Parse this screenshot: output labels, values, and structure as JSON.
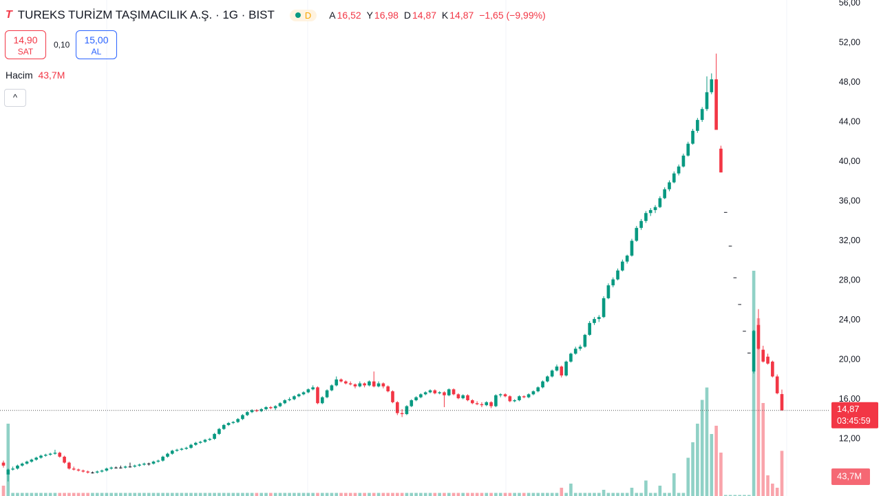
{
  "header": {
    "logo": "T",
    "title": "TUREKS TURİZM TAŞIMACILIK A.Ş. · 1G · BIST",
    "badge": "D",
    "o_key": "A",
    "o_val": "16,52",
    "h_key": "Y",
    "h_val": "16,98",
    "l_key": "D",
    "l_val": "14,87",
    "c_key": "K",
    "c_val": "14,87",
    "change": "−1,65 (−9,99%)",
    "sell_price": "14,90",
    "sell": "SAT",
    "spread": "0,10",
    "buy_price": "15,00",
    "buy": "AL",
    "volume_key": "Hacim",
    "volume_val": "43,7M",
    "collapse": "^"
  },
  "chart_data": {
    "type": "candlestick",
    "grid": true,
    "up_color": "#089981",
    "down_color": "#f23645",
    "flat_color": "#131722",
    "ylim": [
      6.23,
      56.31
    ],
    "yticks": [
      {
        "value": 12,
        "label": "12,00"
      },
      {
        "value": 16,
        "label": "16,00"
      },
      {
        "value": 20,
        "label": "20,00"
      },
      {
        "value": 24,
        "label": "24,00"
      },
      {
        "value": 28,
        "label": "28,00"
      },
      {
        "value": 32,
        "label": "32,00"
      },
      {
        "value": 36,
        "label": "36,00"
      },
      {
        "value": 40,
        "label": "40,00"
      },
      {
        "value": 44,
        "label": "44,00"
      },
      {
        "value": 48,
        "label": "48,00"
      },
      {
        "value": 52,
        "label": "52,00"
      },
      {
        "value": 56,
        "label": "56,00"
      }
    ],
    "last_price": 14.87,
    "last_price_label": "14,87",
    "countdown": "03:45:59",
    "vlim": [
      0,
      480
    ],
    "volume_label": "43,7M",
    "ohlc": [
      [
        9.6,
        9.8,
        9.1,
        9.3
      ],
      [
        8.4,
        9.0,
        7.7,
        8.9
      ],
      [
        8.9,
        9.2,
        8.8,
        9.0
      ],
      [
        9.0,
        9.4,
        8.9,
        9.3
      ],
      [
        9.3,
        9.6,
        9.2,
        9.5
      ],
      [
        9.5,
        9.8,
        9.4,
        9.7
      ],
      [
        9.7,
        10.0,
        9.6,
        9.9
      ],
      [
        9.9,
        10.2,
        9.8,
        10.1
      ],
      [
        10.1,
        10.4,
        10.0,
        10.3
      ],
      [
        10.3,
        10.5,
        10.2,
        10.4
      ],
      [
        10.4,
        10.6,
        10.3,
        10.5
      ],
      [
        10.5,
        10.9,
        10.4,
        10.6
      ],
      [
        10.6,
        10.7,
        10.1,
        10.2
      ],
      [
        10.2,
        10.3,
        9.5,
        9.6
      ],
      [
        9.6,
        9.7,
        8.9,
        9.0
      ],
      [
        9.0,
        9.2,
        8.8,
        8.9
      ],
      [
        8.9,
        9.0,
        8.7,
        8.8
      ],
      [
        8.8,
        8.9,
        8.6,
        8.7
      ],
      [
        8.7,
        8.8,
        8.5,
        8.6
      ],
      [
        8.6,
        8.7,
        8.5,
        8.6
      ],
      [
        8.6,
        8.8,
        8.5,
        8.7
      ],
      [
        8.7,
        8.9,
        8.6,
        8.8
      ],
      [
        8.8,
        9.1,
        8.7,
        9.0
      ],
      [
        9.0,
        9.2,
        8.9,
        9.1
      ],
      [
        9.1,
        9.2,
        9.0,
        9.1
      ],
      [
        9.1,
        9.3,
        9.0,
        9.1
      ],
      [
        9.1,
        9.3,
        9.0,
        9.2
      ],
      [
        9.2,
        9.6,
        9.1,
        9.2
      ],
      [
        9.2,
        9.4,
        9.1,
        9.3
      ],
      [
        9.3,
        9.5,
        9.2,
        9.4
      ],
      [
        9.4,
        9.6,
        9.3,
        9.5
      ],
      [
        9.5,
        9.6,
        9.3,
        9.5
      ],
      [
        9.5,
        9.8,
        9.4,
        9.7
      ],
      [
        9.7,
        9.9,
        9.6,
        9.8
      ],
      [
        9.8,
        10.3,
        9.7,
        10.2
      ],
      [
        10.2,
        10.6,
        10.1,
        10.5
      ],
      [
        10.5,
        10.9,
        10.4,
        10.8
      ],
      [
        10.8,
        11.0,
        10.7,
        10.9
      ],
      [
        10.9,
        11.1,
        10.8,
        11.0
      ],
      [
        11.0,
        11.2,
        10.9,
        11.1
      ],
      [
        11.1,
        11.5,
        11.0,
        11.4
      ],
      [
        11.4,
        11.7,
        11.3,
        11.6
      ],
      [
        11.6,
        11.8,
        11.5,
        11.7
      ],
      [
        11.7,
        12.0,
        11.6,
        11.9
      ],
      [
        11.9,
        12.1,
        11.8,
        12.0
      ],
      [
        12.0,
        12.6,
        11.9,
        12.5
      ],
      [
        12.5,
        13.1,
        12.4,
        13.0
      ],
      [
        13.0,
        13.5,
        12.9,
        13.4
      ],
      [
        13.4,
        13.7,
        13.3,
        13.6
      ],
      [
        13.6,
        13.8,
        13.5,
        13.7
      ],
      [
        13.7,
        14.1,
        13.6,
        14.0
      ],
      [
        14.0,
        14.5,
        13.9,
        14.4
      ],
      [
        14.4,
        14.8,
        14.3,
        14.7
      ],
      [
        14.7,
        15.0,
        14.6,
        14.9
      ],
      [
        14.9,
        15.0,
        14.7,
        14.8
      ],
      [
        14.8,
        15.1,
        14.7,
        15.0
      ],
      [
        15.0,
        15.3,
        14.9,
        15.2
      ],
      [
        15.2,
        15.3,
        15.0,
        15.1
      ],
      [
        15.1,
        15.4,
        14.9,
        15.3
      ],
      [
        15.3,
        15.7,
        15.2,
        15.6
      ],
      [
        15.6,
        16.0,
        15.5,
        15.9
      ],
      [
        15.9,
        16.2,
        15.8,
        16.0
      ],
      [
        16.0,
        16.4,
        15.9,
        16.3
      ],
      [
        16.3,
        16.6,
        16.2,
        16.5
      ],
      [
        16.5,
        16.8,
        16.4,
        16.7
      ],
      [
        16.7,
        17.1,
        16.6,
        17.0
      ],
      [
        17.0,
        17.4,
        16.9,
        17.2
      ],
      [
        17.2,
        17.3,
        15.5,
        15.6
      ],
      [
        15.6,
        16.3,
        15.5,
        16.2
      ],
      [
        16.2,
        17.0,
        16.1,
        16.9
      ],
      [
        16.9,
        17.5,
        16.8,
        17.4
      ],
      [
        17.4,
        18.3,
        17.3,
        18.0
      ],
      [
        18.0,
        18.1,
        17.7,
        17.8
      ],
      [
        17.8,
        17.9,
        17.5,
        17.6
      ],
      [
        17.6,
        17.8,
        17.4,
        17.5
      ],
      [
        17.5,
        17.6,
        17.1,
        17.3
      ],
      [
        17.3,
        17.8,
        17.2,
        17.6
      ],
      [
        17.6,
        17.7,
        17.2,
        17.4
      ],
      [
        17.4,
        17.9,
        17.3,
        17.8
      ],
      [
        17.8,
        18.8,
        17.2,
        17.3
      ],
      [
        17.3,
        17.8,
        17.2,
        17.6
      ],
      [
        17.6,
        17.7,
        17.1,
        17.3
      ],
      [
        17.3,
        17.4,
        16.7,
        16.8
      ],
      [
        16.8,
        16.9,
        15.6,
        15.7
      ],
      [
        15.7,
        15.8,
        14.4,
        14.6
      ],
      [
        14.6,
        15.0,
        14.2,
        14.5
      ],
      [
        14.5,
        15.4,
        14.4,
        15.3
      ],
      [
        15.3,
        16.0,
        15.2,
        15.9
      ],
      [
        15.9,
        16.3,
        15.8,
        16.2
      ],
      [
        16.2,
        16.6,
        16.1,
        16.5
      ],
      [
        16.5,
        16.8,
        16.4,
        16.7
      ],
      [
        16.7,
        17.0,
        16.6,
        16.9
      ],
      [
        16.9,
        17.0,
        16.5,
        16.6
      ],
      [
        16.6,
        16.8,
        16.5,
        16.7
      ],
      [
        16.7,
        16.8,
        15.2,
        16.4
      ],
      [
        16.4,
        17.1,
        16.3,
        17.0
      ],
      [
        17.0,
        17.1,
        16.4,
        16.5
      ],
      [
        16.5,
        16.6,
        16.0,
        16.1
      ],
      [
        16.1,
        16.5,
        16.0,
        16.4
      ],
      [
        16.4,
        16.5,
        15.8,
        15.9
      ],
      [
        15.9,
        16.0,
        15.5,
        15.6
      ],
      [
        15.6,
        15.8,
        15.4,
        15.5
      ],
      [
        15.5,
        15.7,
        15.2,
        15.4
      ],
      [
        15.4,
        15.8,
        15.3,
        15.7
      ],
      [
        15.7,
        15.8,
        15.1,
        15.3
      ],
      [
        15.3,
        16.5,
        15.2,
        16.4
      ],
      [
        16.4,
        16.6,
        16.2,
        16.5
      ],
      [
        16.5,
        16.6,
        16.2,
        16.3
      ],
      [
        16.3,
        16.4,
        15.7,
        15.8
      ],
      [
        15.8,
        16.0,
        15.7,
        15.9
      ],
      [
        15.9,
        16.4,
        15.8,
        16.3
      ],
      [
        16.3,
        16.4,
        16.1,
        16.2
      ],
      [
        16.2,
        16.6,
        16.1,
        16.5
      ],
      [
        16.5,
        16.9,
        16.4,
        16.8
      ],
      [
        16.8,
        17.3,
        16.7,
        17.2
      ],
      [
        17.2,
        17.9,
        17.1,
        17.8
      ],
      [
        17.8,
        18.4,
        17.7,
        18.3
      ],
      [
        18.3,
        19.0,
        18.2,
        18.9
      ],
      [
        18.9,
        19.5,
        18.8,
        19.3
      ],
      [
        19.3,
        19.4,
        18.2,
        18.4
      ],
      [
        18.4,
        19.9,
        18.3,
        19.8
      ],
      [
        19.8,
        20.7,
        19.7,
        20.6
      ],
      [
        20.6,
        21.3,
        20.5,
        21.1
      ],
      [
        21.1,
        21.5,
        20.9,
        21.3
      ],
      [
        21.3,
        22.6,
        21.2,
        22.5
      ],
      [
        22.5,
        23.9,
        22.4,
        23.7
      ],
      [
        23.7,
        24.3,
        23.5,
        24.1
      ],
      [
        24.1,
        24.5,
        23.8,
        24.3
      ],
      [
        24.3,
        26.4,
        24.2,
        26.2
      ],
      [
        26.2,
        27.7,
        26.1,
        27.5
      ],
      [
        27.5,
        28.3,
        27.3,
        28.1
      ],
      [
        28.1,
        29.2,
        28.0,
        29.0
      ],
      [
        29.0,
        30.1,
        28.9,
        29.9
      ],
      [
        29.9,
        30.6,
        29.7,
        30.5
      ],
      [
        30.5,
        32.2,
        30.4,
        32.0
      ],
      [
        32.0,
        33.5,
        31.9,
        33.3
      ],
      [
        33.3,
        34.2,
        33.1,
        34.0
      ],
      [
        34.0,
        35.0,
        33.8,
        34.8
      ],
      [
        34.8,
        35.3,
        34.5,
        35.1
      ],
      [
        35.1,
        35.6,
        34.8,
        35.4
      ],
      [
        35.4,
        36.5,
        35.3,
        36.3
      ],
      [
        36.3,
        37.4,
        36.2,
        37.2
      ],
      [
        37.2,
        38.1,
        37.0,
        37.9
      ],
      [
        37.9,
        39.0,
        37.8,
        38.8
      ],
      [
        38.8,
        39.7,
        38.6,
        39.5
      ],
      [
        39.5,
        40.8,
        39.4,
        40.6
      ],
      [
        40.6,
        42.0,
        40.5,
        41.8
      ],
      [
        41.8,
        43.3,
        41.7,
        43.1
      ],
      [
        43.1,
        44.4,
        42.9,
        44.2
      ],
      [
        44.2,
        45.5,
        44.0,
        45.3
      ],
      [
        45.3,
        48.6,
        45.1,
        47.0
      ],
      [
        47.0,
        48.9,
        46.8,
        48.3
      ],
      [
        48.3,
        50.9,
        43.2,
        43.2
      ],
      [
        41.3,
        41.6,
        38.9,
        38.9
      ],
      [
        34.9,
        34.9,
        34.9,
        34.9
      ],
      [
        31.5,
        31.5,
        31.5,
        31.5
      ],
      [
        28.3,
        28.3,
        28.3,
        28.3
      ],
      [
        25.6,
        25.6,
        25.6,
        25.6
      ],
      [
        22.9,
        22.9,
        22.9,
        22.9
      ],
      [
        20.7,
        20.7,
        20.7,
        20.7
      ],
      [
        18.8,
        23.0,
        18.6,
        22.9
      ],
      [
        23.5,
        25.1,
        21.0,
        21.1
      ],
      [
        21.0,
        21.4,
        19.7,
        19.8
      ],
      [
        20.3,
        20.6,
        19.5,
        19.6
      ],
      [
        19.8,
        19.9,
        18.2,
        18.3
      ],
      [
        18.3,
        18.5,
        16.5,
        16.6
      ],
      [
        16.52,
        16.98,
        14.87,
        14.87
      ]
    ],
    "volume": [
      10,
      70,
      3,
      3,
      3,
      3,
      3,
      3,
      3,
      3,
      3,
      3,
      3,
      3,
      3,
      3,
      3,
      3,
      3,
      3,
      3,
      3,
      3,
      3,
      3,
      3,
      3,
      3,
      3,
      3,
      3,
      3,
      3,
      3,
      3,
      3,
      3,
      3,
      3,
      3,
      3,
      3,
      3,
      3,
      3,
      3,
      3,
      3,
      3,
      3,
      3,
      3,
      3,
      3,
      3,
      3,
      3,
      3,
      3,
      3,
      3,
      3,
      3,
      3,
      3,
      3,
      3,
      3,
      3,
      3,
      3,
      3,
      3,
      3,
      3,
      3,
      3,
      3,
      3,
      3,
      3,
      3,
      3,
      3,
      3,
      3,
      3,
      3,
      3,
      3,
      3,
      3,
      3,
      3,
      3,
      3,
      3,
      3,
      3,
      3,
      3,
      3,
      3,
      3,
      3,
      3,
      3,
      3,
      3,
      3,
      3,
      3,
      3,
      3,
      3,
      3,
      3,
      3,
      3,
      8,
      3,
      12,
      3,
      3,
      3,
      3,
      3,
      3,
      6,
      3,
      3,
      3,
      3,
      3,
      8,
      3,
      3,
      15,
      3,
      3,
      10,
      3,
      3,
      22,
      3,
      3,
      37,
      52,
      70,
      93,
      105,
      60,
      68,
      42,
      1,
      1,
      1,
      1,
      1,
      1,
      218,
      172,
      90,
      20,
      12,
      8,
      43.7
    ]
  }
}
